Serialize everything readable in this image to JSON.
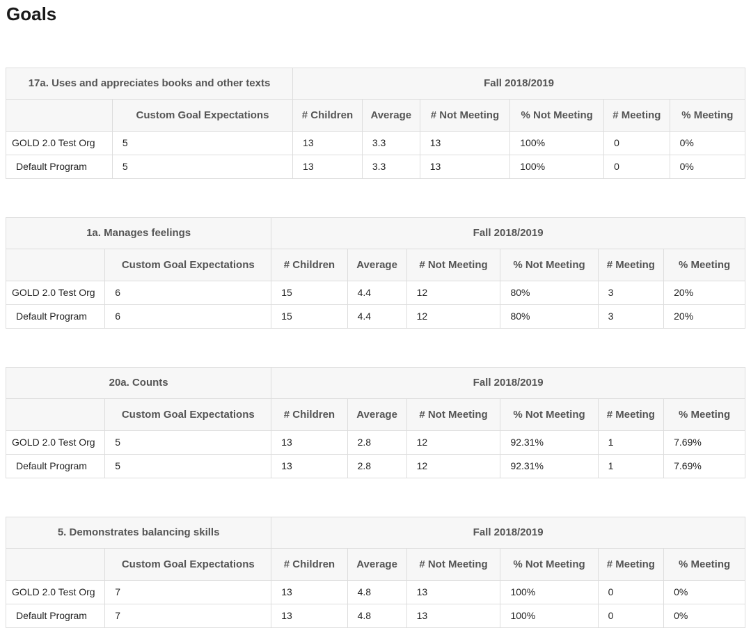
{
  "page": {
    "title": "Goals"
  },
  "period_header": "Fall 2018/2019",
  "columns": [
    "",
    "Custom Goal Expectations",
    "# Children",
    "Average",
    "# Not Meeting",
    "% Not Meeting",
    "# Meeting",
    "% Meeting"
  ],
  "tables": [
    {
      "goal": "17a. Uses and appreciates books and other texts",
      "period": "Fall 2018/2019",
      "rows": [
        {
          "label": "GOLD 2.0 Test Org",
          "indent": false,
          "values": [
            "5",
            "13",
            "3.3",
            "13",
            "100%",
            "0",
            "0%"
          ]
        },
        {
          "label": "Default Program",
          "indent": true,
          "values": [
            "5",
            "13",
            "3.3",
            "13",
            "100%",
            "0",
            "0%"
          ]
        }
      ]
    },
    {
      "goal": "1a. Manages feelings",
      "period": "Fall 2018/2019",
      "rows": [
        {
          "label": "GOLD 2.0 Test Org",
          "indent": false,
          "values": [
            "6",
            "15",
            "4.4",
            "12",
            "80%",
            "3",
            "20%"
          ]
        },
        {
          "label": "Default Program",
          "indent": true,
          "values": [
            "6",
            "15",
            "4.4",
            "12",
            "80%",
            "3",
            "20%"
          ]
        }
      ]
    },
    {
      "goal": "20a. Counts",
      "period": "Fall 2018/2019",
      "rows": [
        {
          "label": "GOLD 2.0 Test Org",
          "indent": false,
          "values": [
            "5",
            "13",
            "2.8",
            "12",
            "92.31%",
            "1",
            "7.69%"
          ]
        },
        {
          "label": "Default Program",
          "indent": true,
          "values": [
            "5",
            "13",
            "2.8",
            "12",
            "92.31%",
            "1",
            "7.69%"
          ]
        }
      ]
    },
    {
      "goal": "5. Demonstrates balancing skills",
      "period": "Fall 2018/2019",
      "rows": [
        {
          "label": "GOLD 2.0 Test Org",
          "indent": false,
          "values": [
            "7",
            "13",
            "4.8",
            "13",
            "100%",
            "0",
            "0%"
          ]
        },
        {
          "label": "Default Program",
          "indent": true,
          "values": [
            "7",
            "13",
            "4.8",
            "13",
            "100%",
            "0",
            "0%"
          ]
        }
      ]
    }
  ],
  "colors": {
    "header_bg": "#f7f7f7",
    "border": "#dddddd",
    "header_text": "#555555",
    "body_text": "#222222"
  }
}
